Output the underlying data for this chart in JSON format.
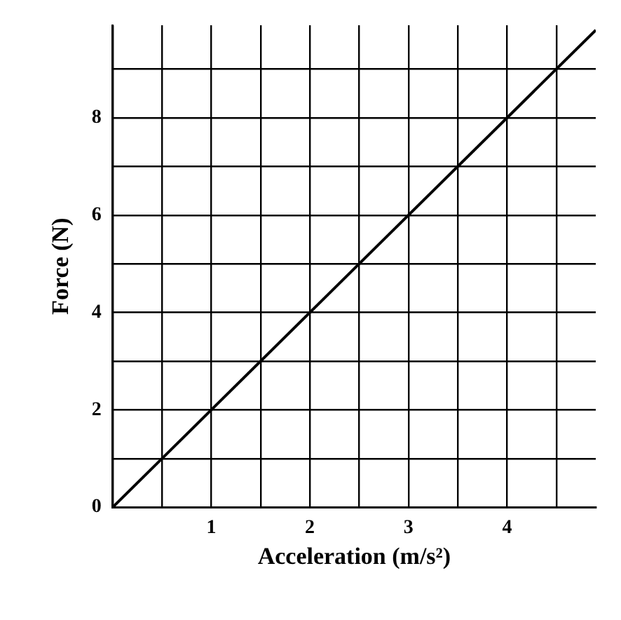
{
  "chart_data": {
    "type": "line",
    "xlabel": "Acceleration (m/s²)",
    "ylabel": "Force (N)",
    "x": [
      0,
      4.9
    ],
    "series": [
      {
        "color": "#000000",
        "values": [
          0,
          9.8
        ]
      }
    ],
    "xlim": [
      0,
      4.9
    ],
    "ylim": [
      0,
      9.9
    ],
    "xticks": [
      {
        "value": 0,
        "label": null
      },
      {
        "value": 0.5,
        "label": null
      },
      1,
      {
        "value": 1.5,
        "label": null
      },
      2,
      {
        "value": 2.5,
        "label": null
      },
      3,
      {
        "value": 3.5,
        "label": null
      },
      4,
      {
        "value": 4.5,
        "label": null
      }
    ],
    "yticks": [
      0,
      {
        "value": 1,
        "label": null
      },
      2,
      {
        "value": 3,
        "label": null
      },
      4,
      {
        "value": 5,
        "label": null
      },
      6,
      {
        "value": 7,
        "label": null
      },
      8,
      {
        "value": 9,
        "label": null
      }
    ],
    "grid": true,
    "marker": "none",
    "line_style": "solid"
  }
}
